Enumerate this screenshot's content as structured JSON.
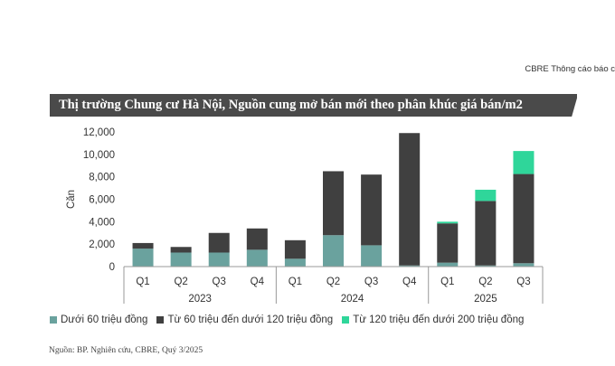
{
  "header_tag": "CBRE Thông cáo báo c",
  "source": "Nguồn: BP. Nghiên cứu, CBRE, Quý 3/2025",
  "colors": {
    "banner": "#4a4a4a",
    "low": "#6aa29e",
    "mid": "#404040",
    "high": "#2fd69a",
    "axis": "#999999"
  },
  "chart_data": {
    "type": "bar",
    "stacked": true,
    "title": "Thị trường Chung cư Hà Nội, Nguồn cung mở bán mới theo phân khúc giá bán/m2",
    "ylabel": "Căn",
    "xlabel": "",
    "ylim": [
      0,
      12000
    ],
    "yticks": [
      0,
      2000,
      4000,
      6000,
      8000,
      10000,
      12000
    ],
    "ytick_labels": [
      "0",
      "2,000",
      "4,000",
      "6,000",
      "8,000",
      "10,000",
      "12,000"
    ],
    "categories": [
      "Q1",
      "Q2",
      "Q3",
      "Q4",
      "Q1",
      "Q2",
      "Q3",
      "Q4",
      "Q1",
      "Q2",
      "Q3"
    ],
    "groups": [
      {
        "label": "2023",
        "count": 4
      },
      {
        "label": "2024",
        "count": 4
      },
      {
        "label": "2025",
        "count": 3
      }
    ],
    "grid": false,
    "legend_position": "bottom",
    "series": [
      {
        "name": "Dưới 60 triệu đồng",
        "color": "#6aa29e",
        "values": [
          1600,
          1250,
          1250,
          1500,
          700,
          2800,
          1900,
          100,
          350,
          100,
          300
        ]
      },
      {
        "name": "Từ 60 triệu đến dưới 120 triệu đồng",
        "color": "#404040",
        "values": [
          500,
          500,
          1750,
          1900,
          1650,
          5700,
          6300,
          11800,
          3500,
          5750,
          7950
        ]
      },
      {
        "name": "Từ 120 triệu đến dưới 200 triệu đồng",
        "color": "#2fd69a",
        "values": [
          0,
          0,
          0,
          0,
          0,
          0,
          0,
          0,
          150,
          1000,
          2050
        ]
      }
    ]
  }
}
